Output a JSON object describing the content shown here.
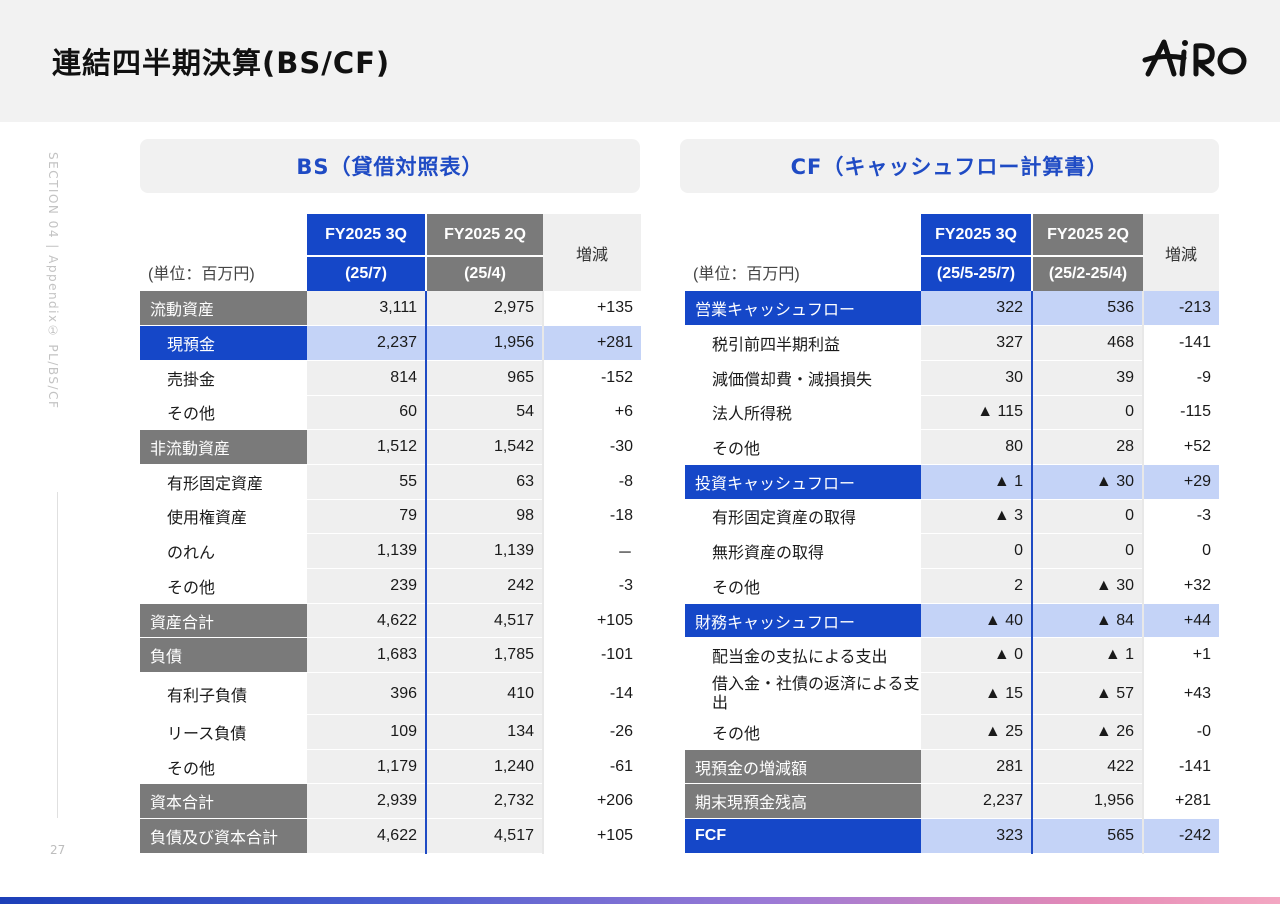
{
  "page_title": "連結四半期決算(BS/CF)",
  "logo_text": "AIRO",
  "section_label": "SECTION 04 | Appendix① PL/BS/CF",
  "page_number": "27",
  "bs": {
    "title": "BS（貸借対照表）",
    "unit": "(単位：百万円)",
    "col_current": "FY2025 3Q",
    "col_current_sub": "(25/7)",
    "col_prev": "FY2025 2Q",
    "col_prev_sub": "(25/4)",
    "col_diff": "増減",
    "rows": [
      {
        "label": "流動資産",
        "cur": "3,111",
        "prev": "2,975",
        "diff": "+135"
      },
      {
        "label": "現預金",
        "cur": "2,237",
        "prev": "1,956",
        "diff": "+281"
      },
      {
        "label": "売掛金",
        "cur": "814",
        "prev": "965",
        "diff": "-152"
      },
      {
        "label": "その他",
        "cur": "60",
        "prev": "54",
        "diff": "+6"
      },
      {
        "label": "非流動資産",
        "cur": "1,512",
        "prev": "1,542",
        "diff": "-30"
      },
      {
        "label": "有形固定資産",
        "cur": "55",
        "prev": "63",
        "diff": "-8"
      },
      {
        "label": "使用権資産",
        "cur": "79",
        "prev": "98",
        "diff": "-18"
      },
      {
        "label": "のれん",
        "cur": "1,139",
        "prev": "1,139",
        "diff": "－"
      },
      {
        "label": "その他",
        "cur": "239",
        "prev": "242",
        "diff": "-3"
      },
      {
        "label": "資産合計",
        "cur": "4,622",
        "prev": "4,517",
        "diff": "+105"
      },
      {
        "label": "負債",
        "cur": "1,683",
        "prev": "1,785",
        "diff": "-101"
      },
      {
        "label": "有利子負債",
        "cur": "396",
        "prev": "410",
        "diff": "-14"
      },
      {
        "label": "リース負債",
        "cur": "109",
        "prev": "134",
        "diff": "-26"
      },
      {
        "label": "その他",
        "cur": "1,179",
        "prev": "1,240",
        "diff": "-61"
      },
      {
        "label": "資本合計",
        "cur": "2,939",
        "prev": "2,732",
        "diff": "+206"
      },
      {
        "label": "負債及び資本合計",
        "cur": "4,622",
        "prev": "4,517",
        "diff": "+105"
      }
    ]
  },
  "cf": {
    "title": "CF（キャッシュフロー計算書）",
    "unit": "(単位：百万円)",
    "col_current": "FY2025 3Q",
    "col_current_sub": "(25/5-25/7)",
    "col_prev": "FY2025 2Q",
    "col_prev_sub": "(25/2-25/4)",
    "col_diff": "増減",
    "rows": [
      {
        "label": "営業キャッシュフロー",
        "cur": "322",
        "prev": "536",
        "diff": "-213"
      },
      {
        "label": "税引前四半期利益",
        "cur": "327",
        "prev": "468",
        "diff": "-141"
      },
      {
        "label": "減価償却費・減損損失",
        "cur": "30",
        "prev": "39",
        "diff": "-9"
      },
      {
        "label": "法人所得税",
        "cur": "▲ 115",
        "prev": "0",
        "diff": "-115"
      },
      {
        "label": "その他",
        "cur": "80",
        "prev": "28",
        "diff": "+52"
      },
      {
        "label": "投資キャッシュフロー",
        "cur": "▲ 1",
        "prev": "▲ 30",
        "diff": "+29"
      },
      {
        "label": "有形固定資産の取得",
        "cur": "▲ 3",
        "prev": "0",
        "diff": "-3"
      },
      {
        "label": "無形資産の取得",
        "cur": "0",
        "prev": "0",
        "diff": "0"
      },
      {
        "label": "その他",
        "cur": "2",
        "prev": "▲ 30",
        "diff": "+32"
      },
      {
        "label": "財務キャッシュフロー",
        "cur": "▲ 40",
        "prev": "▲ 84",
        "diff": "+44"
      },
      {
        "label": "配当金の支払による支出",
        "cur": "▲ 0",
        "prev": "▲ 1",
        "diff": "+1"
      },
      {
        "label": "借入金・社債の返済による支出",
        "cur": "▲ 15",
        "prev": "▲ 57",
        "diff": "+43"
      },
      {
        "label": "その他",
        "cur": "▲ 25",
        "prev": "▲ 26",
        "diff": "-0"
      },
      {
        "label": "現預金の増減額",
        "cur": "281",
        "prev": "422",
        "diff": "-141"
      },
      {
        "label": "期末現預金残高",
        "cur": "2,237",
        "prev": "1,956",
        "diff": "+281"
      },
      {
        "label": "FCF",
        "cur": "323",
        "prev": "565",
        "diff": "-242"
      }
    ]
  },
  "colors": {
    "accent_blue": "#1547c8",
    "light_blue": "#c4d3f7",
    "gray_header": "#7a7a7a",
    "light_gray": "#efefef"
  }
}
